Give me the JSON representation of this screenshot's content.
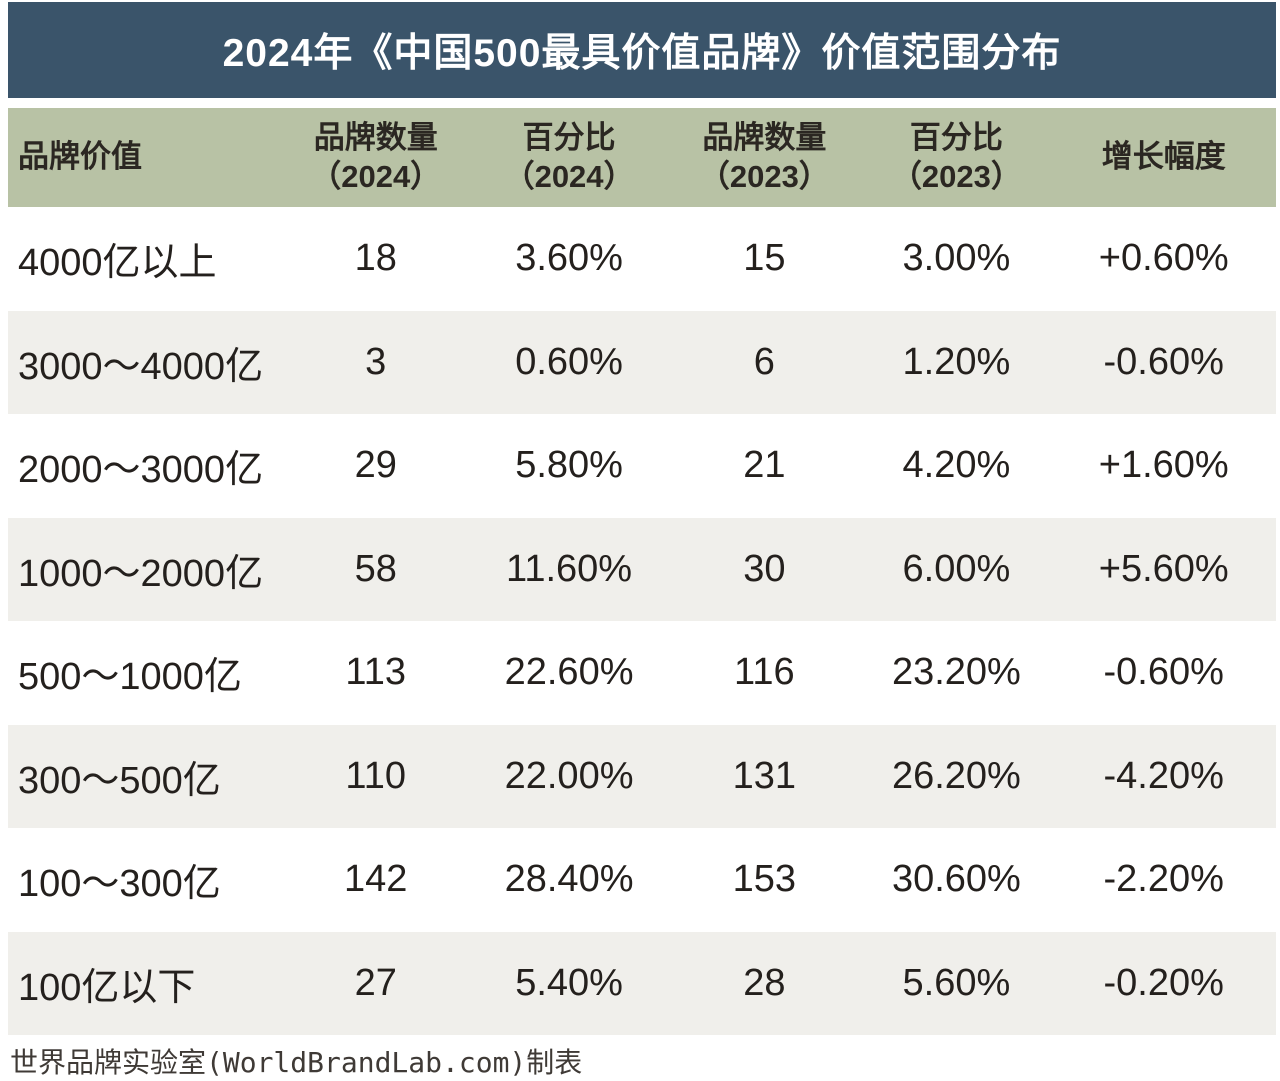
{
  "title": "2024年《中国500最具价值品牌》价值范围分布",
  "footer": "世界品牌实验室(WorldBrandLab.com)制表",
  "colors": {
    "title_bar_bg": "#3a546a",
    "title_text": "#ffffff",
    "header_row_bg": "#b8c2a5",
    "alt_row_bg": "#f0efeb",
    "body_text": "#24201d",
    "page_bg": "#ffffff"
  },
  "headers": [
    {
      "line1": "品牌价值"
    },
    {
      "line1": "品牌数量",
      "line2": "（2024）"
    },
    {
      "line1": "百分比",
      "line2": "（2024）"
    },
    {
      "line1": "品牌数量",
      "line2": "（2023）"
    },
    {
      "line1": "百分比",
      "line2": "（2023）"
    },
    {
      "line1": "增长幅度"
    }
  ],
  "chart_data": {
    "type": "table",
    "title": "2024年《中国500最具价值品牌》价值范围分布",
    "columns": [
      "品牌价值",
      "品牌数量（2024）",
      "百分比（2024）",
      "品牌数量（2023）",
      "百分比（2023）",
      "增长幅度"
    ],
    "rows": [
      [
        "4000亿以上",
        "18",
        "3.60%",
        "15",
        "3.00%",
        "+0.60%"
      ],
      [
        "3000～4000亿",
        "3",
        "0.60%",
        "6",
        "1.20%",
        "-0.60%"
      ],
      [
        "2000～3000亿",
        "29",
        "5.80%",
        "21",
        "4.20%",
        "+1.60%"
      ],
      [
        "1000～2000亿",
        "58",
        "11.60%",
        "30",
        "6.00%",
        "+5.60%"
      ],
      [
        "500～1000亿",
        "113",
        "22.60%",
        "116",
        "23.20%",
        "-0.60%"
      ],
      [
        "300～500亿",
        "110",
        "22.00%",
        "131",
        "26.20%",
        "-4.20%"
      ],
      [
        "100～300亿",
        "142",
        "28.40%",
        "153",
        "30.60%",
        "-2.20%"
      ],
      [
        "100亿以下",
        "27",
        "5.40%",
        "28",
        "5.60%",
        "-0.20%"
      ]
    ],
    "source": "世界品牌实验室(WorldBrandLab.com)制表"
  }
}
